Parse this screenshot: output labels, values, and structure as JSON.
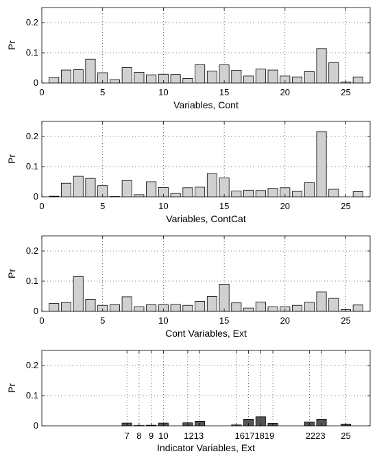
{
  "chart_data": [
    {
      "type": "bar",
      "xlabel": "Variables, Cont",
      "ylabel": "Pr",
      "xlim": [
        0,
        27
      ],
      "ylim": [
        0,
        0.25
      ],
      "xticks": [
        0,
        5,
        10,
        15,
        20,
        25
      ],
      "yticks": [
        0,
        0.1,
        0.2
      ],
      "ytick_labels": [
        "0",
        "0.1",
        "0.2"
      ],
      "grid": true,
      "bar_color": "#d0d0d0",
      "x": [
        1,
        2,
        3,
        4,
        5,
        6,
        7,
        8,
        9,
        10,
        11,
        12,
        13,
        14,
        15,
        16,
        17,
        18,
        19,
        20,
        21,
        22,
        23,
        24,
        25,
        26
      ],
      "values": [
        0.019,
        0.043,
        0.044,
        0.079,
        0.034,
        0.011,
        0.051,
        0.035,
        0.027,
        0.029,
        0.028,
        0.015,
        0.061,
        0.039,
        0.06,
        0.042,
        0.023,
        0.046,
        0.043,
        0.023,
        0.02,
        0.038,
        0.114,
        0.067,
        0.003,
        0.02
      ]
    },
    {
      "type": "bar",
      "xlabel": "Variables, ContCat",
      "ylabel": "Pr",
      "xlim": [
        0,
        27
      ],
      "ylim": [
        0,
        0.25
      ],
      "xticks": [
        0,
        5,
        10,
        15,
        20,
        25
      ],
      "yticks": [
        0,
        0.1,
        0.2
      ],
      "ytick_labels": [
        "0",
        "0.1",
        "0.2"
      ],
      "grid": true,
      "bar_color": "#d0d0d0",
      "x": [
        1,
        2,
        3,
        4,
        5,
        6,
        7,
        8,
        9,
        10,
        11,
        12,
        13,
        14,
        15,
        16,
        17,
        18,
        19,
        20,
        21,
        22,
        23,
        24,
        25,
        26
      ],
      "values": [
        0.002,
        0.045,
        0.068,
        0.061,
        0.037,
        0.001,
        0.054,
        0.007,
        0.05,
        0.031,
        0.011,
        0.03,
        0.032,
        0.077,
        0.063,
        0.019,
        0.022,
        0.021,
        0.028,
        0.03,
        0.018,
        0.047,
        0.216,
        0.025,
        0.0,
        0.017
      ]
    },
    {
      "type": "bar",
      "xlabel": "Cont Variables, Ext",
      "ylabel": "Pr",
      "xlim": [
        0,
        27
      ],
      "ylim": [
        0,
        0.25
      ],
      "xticks": [
        0,
        5,
        10,
        15,
        20,
        25
      ],
      "yticks": [
        0,
        0.1,
        0.2
      ],
      "ytick_labels": [
        "0",
        "0.1",
        "0.2"
      ],
      "grid": true,
      "bar_color": "#d0d0d0",
      "x": [
        1,
        2,
        3,
        4,
        5,
        6,
        7,
        8,
        9,
        10,
        11,
        12,
        13,
        14,
        15,
        16,
        17,
        18,
        19,
        20,
        21,
        22,
        23,
        24,
        25,
        26
      ],
      "values": [
        0.026,
        0.029,
        0.115,
        0.04,
        0.02,
        0.022,
        0.048,
        0.015,
        0.022,
        0.022,
        0.023,
        0.02,
        0.033,
        0.049,
        0.09,
        0.028,
        0.011,
        0.031,
        0.015,
        0.015,
        0.02,
        0.03,
        0.064,
        0.043,
        0.006,
        0.021
      ]
    },
    {
      "type": "bar",
      "xlabel": "Indicator Variables, Ext",
      "ylabel": "Pr",
      "xlim": [
        0,
        27
      ],
      "ylim": [
        0,
        0.25
      ],
      "xticks": [
        7,
        8,
        9,
        10,
        12,
        13,
        16,
        17,
        18,
        19,
        22,
        23,
        25
      ],
      "xtick_label_text": [
        "7",
        "8",
        "9",
        "10",
        "1213",
        "16171819",
        "2223",
        "25"
      ],
      "yticks": [
        0,
        0.1,
        0.2
      ],
      "ytick_labels": [
        "0",
        "0.1",
        "0.2"
      ],
      "grid": true,
      "bar_color": "#555555",
      "x": [
        7,
        8,
        9,
        10,
        12,
        13,
        16,
        17,
        18,
        19,
        22,
        23,
        25
      ],
      "values": [
        0.009,
        0.001,
        0.002,
        0.009,
        0.01,
        0.015,
        0.003,
        0.022,
        0.03,
        0.008,
        0.013,
        0.022,
        0.006
      ]
    }
  ]
}
